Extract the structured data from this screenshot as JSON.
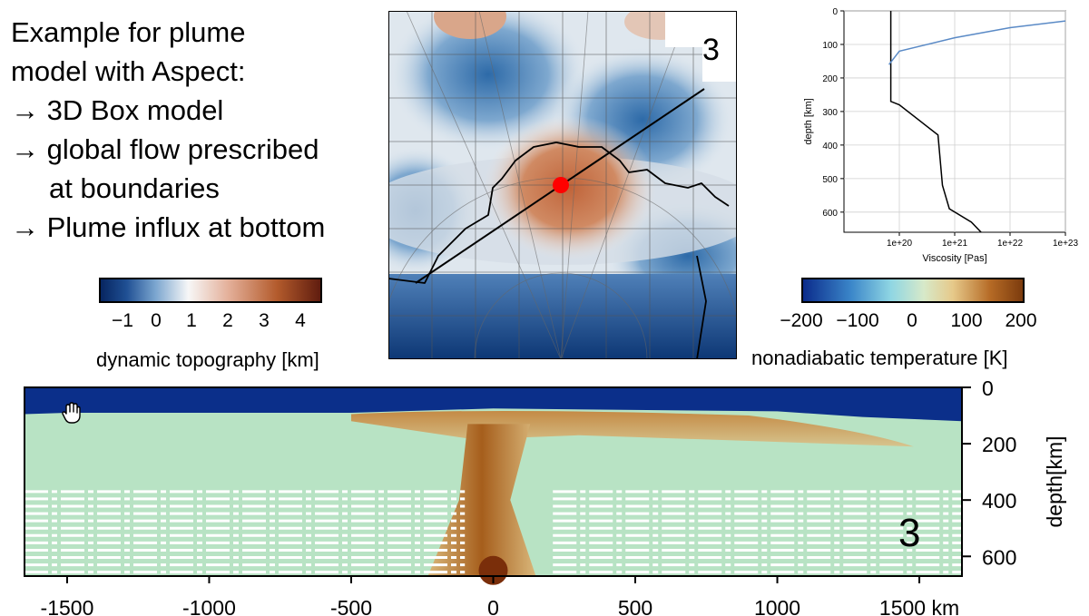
{
  "slide": {
    "bullets": [
      "Example for plume",
      "model with Aspect:",
      "→ 3D Box model",
      "→ global flow prescribed",
      "at boundaries",
      "→ Plume influx at bottom"
    ]
  },
  "map_panel": {
    "panel_number": "3",
    "colors": {
      "positive": "#c87a50",
      "negative": "#2f6aa6",
      "neutral": "#f2f0ee",
      "marker": "#ff0000"
    }
  },
  "colorbar_topo": {
    "ticks": [
      "−1",
      "0",
      "1",
      "2",
      "3",
      "4"
    ],
    "label": "dynamic topography [km]",
    "range": [
      -1.6,
      4.5
    ]
  },
  "colorbar_temp": {
    "ticks": [
      "−200",
      "−100",
      "0",
      "100",
      "200"
    ],
    "label": "nonadiabatic temperature [K]",
    "range": [
      -250,
      200
    ]
  },
  "chart_data": [
    {
      "type": "line",
      "xlabel": "Viscosity [Pas]",
      "ylabel": "depth [km]",
      "x_scale": "log",
      "xlim": [
        1e+19,
        1e+23
      ],
      "ylim": [
        660,
        0
      ],
      "x_ticks": [
        "1e+20",
        "1e+21",
        "1e+22",
        "1e+23"
      ],
      "y_ticks": [
        "0",
        "100",
        "200",
        "300",
        "400",
        "500",
        "600"
      ],
      "grid": true,
      "series": [
        {
          "color": "#000000",
          "points": [
            [
              7e+19,
              0
            ],
            [
              7e+19,
              270
            ],
            [
              1e+20,
              280
            ],
            [
              5e+20,
              370
            ],
            [
              6e+20,
              520
            ],
            [
              8e+20,
              590
            ],
            [
              2e+21,
              630
            ],
            [
              3e+21,
              660
            ]
          ]
        },
        {
          "color": "#5a8ac6",
          "points": [
            [
              6.5e+19,
              160
            ],
            [
              1e+20,
              120
            ],
            [
              1e+21,
              80
            ],
            [
              1e+22,
              50
            ],
            [
              1e+23,
              30
            ]
          ]
        }
      ]
    },
    {
      "type": "heatmap",
      "x_ticks": [
        "-1500",
        "-1000",
        "-500",
        "0",
        "500",
        "1000",
        "1500 km"
      ],
      "y_ticks": [
        "0",
        "200",
        "400",
        "600"
      ],
      "ylabel": "depth[km]",
      "xlim": [
        -1650,
        1650
      ],
      "ylim": [
        670,
        0
      ],
      "panel_number": "3",
      "colors": {
        "cold_lid": "#0b2f8a",
        "background": "#b8e3c4",
        "hot_plume": "#a65e1c",
        "hot_core": "#7a2e0a"
      }
    }
  ]
}
